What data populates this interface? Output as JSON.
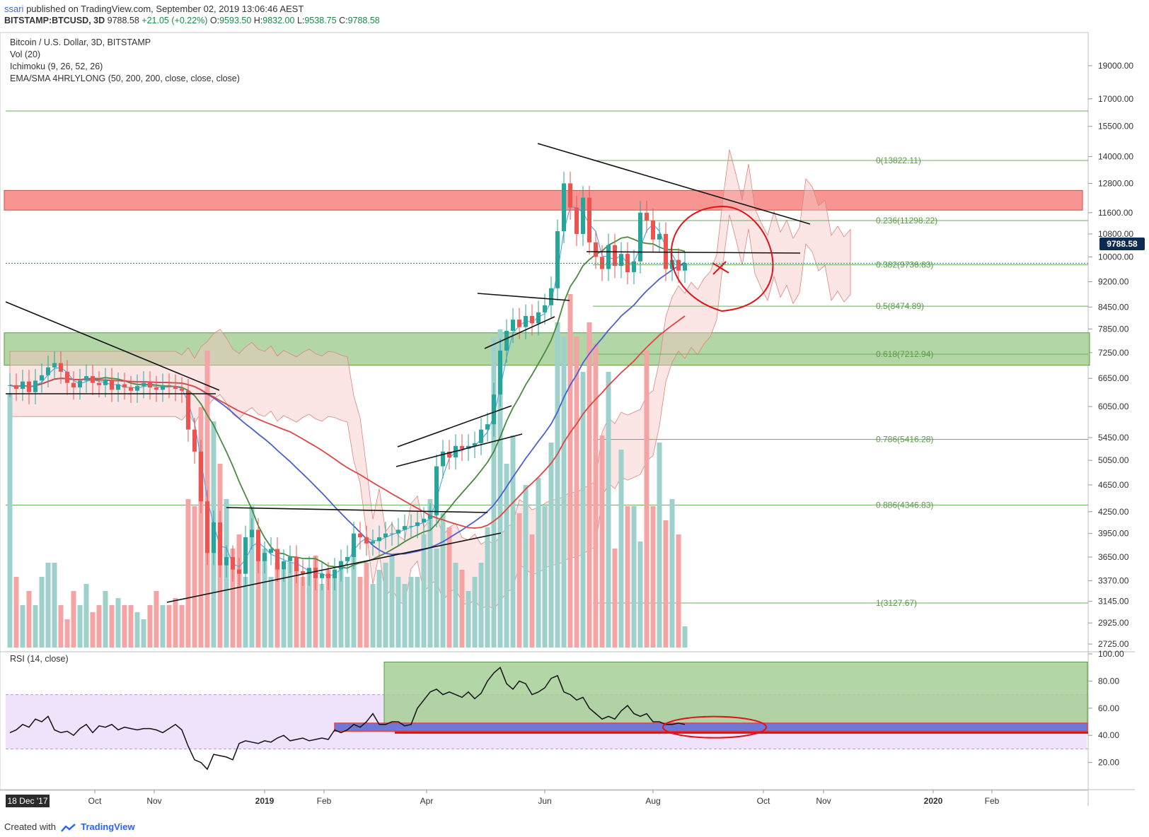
{
  "header": {
    "publisher": "ssari",
    "published_text": "published on TradingView.com, September 02, 2019 13:06:46 AEST",
    "symbol": "BITSTAMP:BTCUSD, 3D",
    "last": "9788.58",
    "change": "+21.05 (+0.22%)",
    "o_label": "O:",
    "o": "9593.50",
    "h_label": "H:",
    "h": "9832.00",
    "l_label": "L:",
    "l": "9538.75",
    "c_label": "C:",
    "c": "9788.58"
  },
  "legend": {
    "title": "Bitcoin / U.S. Dollar, 3D, BITSTAMP",
    "vol": "Vol (20)",
    "ichimoku": "Ichimoku (9, 26, 52, 26)",
    "ema": "EMA/SMA 4HRLYLONG (50, 200, 200, close, close, close)",
    "rsi": "RSI (14, close)"
  },
  "price_tag": "9788.58",
  "date_tag": "18 Dec '17",
  "footer": {
    "created_with": "Created with",
    "brand": "TradingView"
  },
  "chart_data": {
    "type": "line",
    "title": "Bitcoin / U.S. Dollar, 3D, BITSTAMP",
    "x_ticks": [
      "Oct",
      "Nov",
      "2019",
      "Feb",
      "Apr",
      "Jun",
      "Aug",
      "Oct",
      "Nov",
      "2020",
      "Feb"
    ],
    "y_ticks": [
      "19000.00",
      "17000.00",
      "15500.00",
      "14000.00",
      "12800.00",
      "11600.00",
      "10800.00",
      "10000.00",
      "9200.00",
      "8450.00",
      "7850.00",
      "7250.00",
      "6650.00",
      "6050.00",
      "5450.00",
      "5050.00",
      "4650.00",
      "4250.00",
      "3950.00",
      "3650.00",
      "3370.00",
      "3145.00",
      "2925.00",
      "2725.00"
    ],
    "y_scale": "log",
    "fib_levels": [
      {
        "label": "0(13822.11)",
        "value": 13822.11
      },
      {
        "label": "0.236(11298.22)",
        "value": 11298.22
      },
      {
        "label": "0.382(9736.83)",
        "value": 9736.83
      },
      {
        "label": "0.5(8474.89)",
        "value": 8474.89
      },
      {
        "label": "0.618(7212.94)",
        "value": 7212.94
      },
      {
        "label": "0.786(5416.28)",
        "value": 5416.28
      },
      {
        "label": "0.886(4346.83)",
        "value": 4346.83
      },
      {
        "label": "1(3127.67)",
        "value": 3127.67
      }
    ],
    "zones": [
      {
        "name": "resistance",
        "from": 11700,
        "to": 12500,
        "color": "#f4827f"
      },
      {
        "name": "support",
        "from": 6950,
        "to": 7750,
        "color": "#a5cf95"
      }
    ],
    "price_close": [
      6500,
      6420,
      6580,
      6350,
      6600,
      6720,
      6900,
      7000,
      6800,
      6550,
      6450,
      6600,
      6700,
      6550,
      6500,
      6620,
      6400,
      6520,
      6450,
      6380,
      6480,
      6550,
      6450,
      6400,
      6500,
      6480,
      6420,
      6380,
      5600,
      5200,
      4400,
      3700,
      4100,
      3550,
      3650,
      3500,
      3450,
      3900,
      4000,
      3600,
      3700,
      3750,
      3500,
      3600,
      3650,
      3480,
      3450,
      3520,
      3400,
      3450,
      3400,
      3500,
      3600,
      3650,
      3950,
      3900,
      3820,
      3850,
      3900,
      3950,
      3950,
      4000,
      4050,
      4050,
      4100,
      4150,
      4200,
      4950,
      5200,
      5100,
      5300,
      5250,
      5300,
      5350,
      5600,
      5700,
      6300,
      7300,
      7800,
      8100,
      7900,
      8200,
      8000,
      8300,
      8500,
      9000,
      10900,
      12800,
      11800,
      10800,
      12200,
      10500,
      10000,
      9600,
      10400,
      9700,
      10100,
      9500,
      9850,
      11600,
      11300,
      10600,
      10800,
      9600,
      9900,
      9550,
      9788
    ],
    "volume": [
      360,
      100,
      60,
      80,
      60,
      100,
      120,
      120,
      60,
      40,
      80,
      60,
      90,
      50,
      60,
      80,
      60,
      70,
      60,
      60,
      50,
      40,
      60,
      80,
      60,
      60,
      70,
      60,
      210,
      200,
      340,
      420,
      320,
      260,
      210,
      140,
      160,
      100,
      200,
      150,
      140,
      100,
      120,
      110,
      120,
      120,
      100,
      110,
      130,
      90,
      110,
      100,
      110,
      100,
      140,
      100,
      120,
      90,
      110,
      120,
      130,
      100,
      90,
      100,
      100,
      160,
      210,
      140,
      190,
      170,
      120,
      110,
      80,
      100,
      120,
      170,
      440,
      450,
      260,
      300,
      190,
      230,
      160,
      240,
      200,
      290,
      460,
      440,
      500,
      440,
      390,
      460,
      430,
      300,
      390,
      140,
      280,
      200,
      200,
      150,
      420,
      200,
      290,
      180,
      210,
      160,
      30
    ],
    "rsi": [
      42,
      44,
      48,
      46,
      52,
      50,
      54,
      44,
      42,
      43,
      40,
      45,
      48,
      42,
      47,
      46,
      48,
      44,
      46,
      45,
      44,
      45,
      45,
      44,
      42,
      45,
      48,
      44,
      32,
      22,
      20,
      15,
      26,
      25,
      24,
      22,
      34,
      36,
      35,
      34,
      36,
      35,
      38,
      40,
      36,
      37,
      38,
      36,
      37,
      38,
      37,
      44,
      42,
      44,
      48,
      46,
      50,
      56,
      48,
      48,
      50,
      50,
      47,
      48,
      60,
      66,
      72,
      74,
      70,
      72,
      70,
      68,
      72,
      67,
      71,
      80,
      86,
      90,
      78,
      74,
      80,
      78,
      70,
      72,
      75,
      82,
      84,
      72,
      70,
      66,
      68,
      60,
      56,
      52,
      54,
      52,
      58,
      62,
      56,
      54,
      56,
      50,
      50,
      48,
      48,
      49,
      48
    ],
    "rsi_ticks": [
      "100.00",
      "80.00",
      "60.00",
      "40.00",
      "20.00"
    ],
    "legend": [
      "Vol (20)",
      "Ichimoku (9, 26, 52, 26)",
      "EMA/SMA 4HRLYLONG (50, 200, 200, close, close, close)"
    ]
  }
}
